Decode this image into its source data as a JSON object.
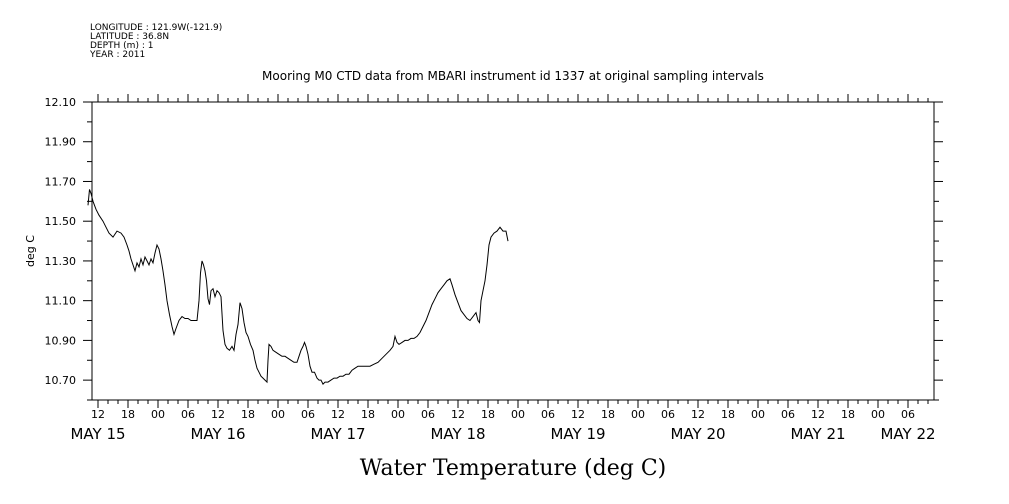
{
  "header": {
    "meta_lines": [
      "LONGITUDE : 121.9W(-121.9)",
      "LATITUDE : 36.8N",
      "DEPTH (m) : 1",
      "YEAR : 2011"
    ]
  },
  "chart_data": {
    "type": "line",
    "title": "Mooring M0 CTD data from MBARI instrument id 1337 at original sampling intervals",
    "xlabel": "Water Temperature (deg C)",
    "ylabel": "deg C",
    "x_unit": "hours since MAY 15 00:00",
    "xlim": [
      9.5,
      94
    ],
    "ylim": [
      10.6,
      12.1
    ],
    "y_ticks": [
      "10.70",
      "10.90",
      "11.10",
      "11.30",
      "11.50",
      "11.70",
      "11.90",
      "12.10"
    ],
    "x_hour_ticks": [
      {
        "x": 12,
        "label": "12"
      },
      {
        "x": 18,
        "label": "18"
      },
      {
        "x": 24,
        "label": "00"
      },
      {
        "x": 30,
        "label": "06"
      },
      {
        "x": 36,
        "label": "12"
      },
      {
        "x": 42,
        "label": "18"
      },
      {
        "x": 48,
        "label": "00"
      },
      {
        "x": 54,
        "label": "06"
      },
      {
        "x": 60,
        "label": "12"
      },
      {
        "x": 66,
        "label": "18"
      },
      {
        "x": 72,
        "label": "00"
      },
      {
        "x": 78,
        "label": "06"
      },
      {
        "x": 84,
        "label": "12"
      },
      {
        "x": 90,
        "label": "18"
      },
      {
        "x": 96,
        "label": "00"
      },
      {
        "x": 102,
        "label": "06"
      },
      {
        "x": 108,
        "label": "12"
      },
      {
        "x": 114,
        "label": "18"
      },
      {
        "x": 120,
        "label": "00"
      },
      {
        "x": 126,
        "label": "06"
      },
      {
        "x": 132,
        "label": "12"
      },
      {
        "x": 138,
        "label": "18"
      },
      {
        "x": 144,
        "label": "00"
      },
      {
        "x": 150,
        "label": "06"
      },
      {
        "x": 156,
        "label": "12"
      },
      {
        "x": 162,
        "label": "18"
      },
      {
        "x": 168,
        "label": "00"
      },
      {
        "x": 174,
        "label": "06"
      }
    ],
    "x_day_ticks": [
      {
        "x": 12,
        "label": "MAY 15"
      },
      {
        "x": 36,
        "label": "MAY 16"
      },
      {
        "x": 60,
        "label": "MAY 17"
      },
      {
        "x": 84,
        "label": "MAY 18"
      },
      {
        "x": 108,
        "label": "MAY 19"
      },
      {
        "x": 132,
        "label": "MAY 20"
      },
      {
        "x": 156,
        "label": "MAY 21"
      },
      {
        "x": 174,
        "label": "MAY 22"
      }
    ],
    "series": [
      {
        "points": [
          [
            10.0,
            11.58
          ],
          [
            10.3,
            11.66
          ],
          [
            10.6,
            11.64
          ],
          [
            11.0,
            11.6
          ],
          [
            11.6,
            11.56
          ],
          [
            12.2,
            11.53
          ],
          [
            13.0,
            11.5
          ],
          [
            13.6,
            11.47
          ],
          [
            14.2,
            11.44
          ],
          [
            15.0,
            11.42
          ],
          [
            15.8,
            11.45
          ],
          [
            16.6,
            11.44
          ],
          [
            17.2,
            11.42
          ],
          [
            17.8,
            11.38
          ],
          [
            18.2,
            11.35
          ],
          [
            18.6,
            11.31
          ],
          [
            19.0,
            11.28
          ],
          [
            19.4,
            11.25
          ],
          [
            19.8,
            11.29
          ],
          [
            20.2,
            11.27
          ],
          [
            20.6,
            11.31
          ],
          [
            21.0,
            11.28
          ],
          [
            21.4,
            11.32
          ],
          [
            21.8,
            11.3
          ],
          [
            22.2,
            11.28
          ],
          [
            22.6,
            11.31
          ],
          [
            23.0,
            11.29
          ],
          [
            23.4,
            11.34
          ],
          [
            23.8,
            11.38
          ],
          [
            24.2,
            11.36
          ],
          [
            24.6,
            11.31
          ],
          [
            25.0,
            11.25
          ],
          [
            25.4,
            11.18
          ],
          [
            25.8,
            11.1
          ],
          [
            26.3,
            11.03
          ],
          [
            26.8,
            10.97
          ],
          [
            27.2,
            10.93
          ],
          [
            27.6,
            10.96
          ],
          [
            28.2,
            11.0
          ],
          [
            28.8,
            11.02
          ],
          [
            29.4,
            11.01
          ],
          [
            30.0,
            11.01
          ],
          [
            30.6,
            11.0
          ],
          [
            31.2,
            11.0
          ],
          [
            31.8,
            11.0
          ],
          [
            32.2,
            11.1
          ],
          [
            32.5,
            11.24
          ],
          [
            32.8,
            11.3
          ],
          [
            33.1,
            11.28
          ],
          [
            33.4,
            11.25
          ],
          [
            33.7,
            11.2
          ],
          [
            34.0,
            11.11
          ],
          [
            34.3,
            11.08
          ],
          [
            34.6,
            11.15
          ],
          [
            35.0,
            11.16
          ],
          [
            35.4,
            11.12
          ],
          [
            35.8,
            11.15
          ],
          [
            36.2,
            11.14
          ],
          [
            36.6,
            11.12
          ],
          [
            37.0,
            10.95
          ],
          [
            37.4,
            10.88
          ],
          [
            37.8,
            10.86
          ],
          [
            38.3,
            10.85
          ],
          [
            38.8,
            10.87
          ],
          [
            39.2,
            10.85
          ],
          [
            39.6,
            10.93
          ],
          [
            40.0,
            10.98
          ],
          [
            40.4,
            11.09
          ],
          [
            40.8,
            11.06
          ],
          [
            41.2,
            10.99
          ],
          [
            41.6,
            10.94
          ],
          [
            42.0,
            10.92
          ],
          [
            42.5,
            10.88
          ],
          [
            43.0,
            10.85
          ],
          [
            43.4,
            10.8
          ],
          [
            43.8,
            10.76
          ],
          [
            44.2,
            10.74
          ],
          [
            44.6,
            10.72
          ],
          [
            45.0,
            10.71
          ],
          [
            45.4,
            10.7
          ],
          [
            45.8,
            10.69
          ],
          [
            46.0,
            10.8
          ],
          [
            46.2,
            10.88
          ],
          [
            46.6,
            10.87
          ],
          [
            47.0,
            10.85
          ],
          [
            47.6,
            10.84
          ],
          [
            48.2,
            10.83
          ],
          [
            48.8,
            10.82
          ],
          [
            49.4,
            10.82
          ],
          [
            50.0,
            10.81
          ],
          [
            50.6,
            10.8
          ],
          [
            51.2,
            10.79
          ],
          [
            51.8,
            10.79
          ],
          [
            52.2,
            10.82
          ],
          [
            52.6,
            10.85
          ],
          [
            53.0,
            10.87
          ],
          [
            53.3,
            10.89
          ],
          [
            53.6,
            10.87
          ],
          [
            54.0,
            10.83
          ],
          [
            54.4,
            10.77
          ],
          [
            54.8,
            10.74
          ],
          [
            55.3,
            10.74
          ],
          [
            55.8,
            10.71
          ],
          [
            56.2,
            10.7
          ],
          [
            56.6,
            10.7
          ],
          [
            57.0,
            10.68
          ],
          [
            57.4,
            10.69
          ],
          [
            58.0,
            10.69
          ],
          [
            58.6,
            10.7
          ],
          [
            59.2,
            10.71
          ],
          [
            59.8,
            10.71
          ],
          [
            60.4,
            10.72
          ],
          [
            61.0,
            10.72
          ],
          [
            61.6,
            10.73
          ],
          [
            62.2,
            10.73
          ],
          [
            62.8,
            10.75
          ],
          [
            63.4,
            10.76
          ],
          [
            64.0,
            10.77
          ],
          [
            64.8,
            10.77
          ],
          [
            65.6,
            10.77
          ],
          [
            66.4,
            10.77
          ],
          [
            67.2,
            10.78
          ],
          [
            68.0,
            10.79
          ],
          [
            68.8,
            10.81
          ],
          [
            69.6,
            10.83
          ],
          [
            70.4,
            10.85
          ],
          [
            71.0,
            10.87
          ],
          [
            71.4,
            10.92
          ],
          [
            71.8,
            10.89
          ],
          [
            72.2,
            10.88
          ],
          [
            72.8,
            10.89
          ],
          [
            73.4,
            10.9
          ],
          [
            74.0,
            10.9
          ],
          [
            74.6,
            10.91
          ],
          [
            75.2,
            10.91
          ],
          [
            75.8,
            10.92
          ],
          [
            76.4,
            10.94
          ],
          [
            77.0,
            10.97
          ],
          [
            77.6,
            11.0
          ],
          [
            78.2,
            11.04
          ],
          [
            78.8,
            11.08
          ],
          [
            79.4,
            11.11
          ],
          [
            80.0,
            11.14
          ],
          [
            80.6,
            11.16
          ],
          [
            81.2,
            11.18
          ],
          [
            81.8,
            11.2
          ],
          [
            82.4,
            11.21
          ],
          [
            82.8,
            11.18
          ],
          [
            83.4,
            11.13
          ],
          [
            84.0,
            11.09
          ],
          [
            84.6,
            11.05
          ],
          [
            85.2,
            11.03
          ],
          [
            85.8,
            11.01
          ],
          [
            86.4,
            11.0
          ],
          [
            87.0,
            11.02
          ],
          [
            87.6,
            11.04
          ],
          [
            88.0,
            11.0
          ],
          [
            88.3,
            10.99
          ],
          [
            88.6,
            11.1
          ],
          [
            89.0,
            11.15
          ],
          [
            89.4,
            11.2
          ],
          [
            89.8,
            11.28
          ],
          [
            90.2,
            11.38
          ],
          [
            90.6,
            11.42
          ],
          [
            91.2,
            11.44
          ],
          [
            91.8,
            11.45
          ],
          [
            92.4,
            11.47
          ],
          [
            93.0,
            11.45
          ],
          [
            93.6,
            11.45
          ],
          [
            94.0,
            11.4
          ]
        ]
      }
    ]
  }
}
